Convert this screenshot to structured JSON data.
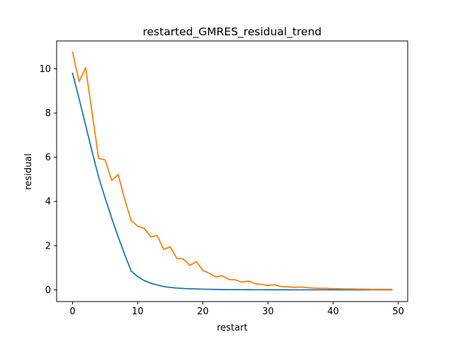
{
  "chart_data": {
    "type": "line",
    "title": "restarted_GMRES_residual_trend",
    "xlabel": "restart",
    "ylabel": "residual",
    "xlim": [
      -2.45,
      51.45
    ],
    "ylim": [
      -0.53,
      11.26
    ],
    "xticks": [
      0,
      10,
      20,
      30,
      40,
      50
    ],
    "yticks": [
      0,
      2,
      4,
      6,
      8,
      10
    ],
    "grid": false,
    "legend": "none",
    "x": [
      0,
      1,
      2,
      3,
      4,
      5,
      6,
      7,
      8,
      9,
      10,
      11,
      12,
      13,
      14,
      15,
      16,
      17,
      18,
      19,
      20,
      21,
      22,
      23,
      24,
      25,
      26,
      27,
      28,
      29,
      30,
      31,
      32,
      33,
      34,
      35,
      36,
      37,
      38,
      39,
      40,
      41,
      42,
      43,
      44,
      45,
      46,
      47,
      48,
      49
    ],
    "series": [
      {
        "color": "#1f77b4",
        "values": [
          9.8,
          8.65,
          7.45,
          6.25,
          5.1,
          4.15,
          3.25,
          2.4,
          1.6,
          0.85,
          0.6,
          0.42,
          0.3,
          0.22,
          0.15,
          0.11,
          0.08,
          0.06,
          0.05,
          0.04,
          0.03,
          0.025,
          0.02,
          0.015,
          0.012,
          0.01,
          0.008,
          0.007,
          0.006,
          0.005,
          0.004,
          0.004,
          0.003,
          0.003,
          0.002,
          0.002,
          0.002,
          0.002,
          0.001,
          0.001,
          0.001,
          0.001,
          0.001,
          0.001,
          0.001,
          0.001,
          0.001,
          0.001,
          0.001,
          0.001
        ]
      },
      {
        "color": "#ff7f0e",
        "values": [
          10.75,
          9.42,
          10.05,
          8.0,
          5.95,
          5.88,
          4.95,
          5.22,
          4.1,
          3.13,
          2.88,
          2.78,
          2.4,
          2.45,
          1.83,
          1.95,
          1.42,
          1.4,
          1.1,
          1.28,
          0.88,
          0.75,
          0.58,
          0.64,
          0.47,
          0.45,
          0.35,
          0.4,
          0.28,
          0.25,
          0.2,
          0.23,
          0.15,
          0.14,
          0.11,
          0.13,
          0.1,
          0.08,
          0.07,
          0.07,
          0.05,
          0.05,
          0.04,
          0.04,
          0.03,
          0.03,
          0.02,
          0.02,
          0.02,
          0.02
        ]
      }
    ]
  }
}
